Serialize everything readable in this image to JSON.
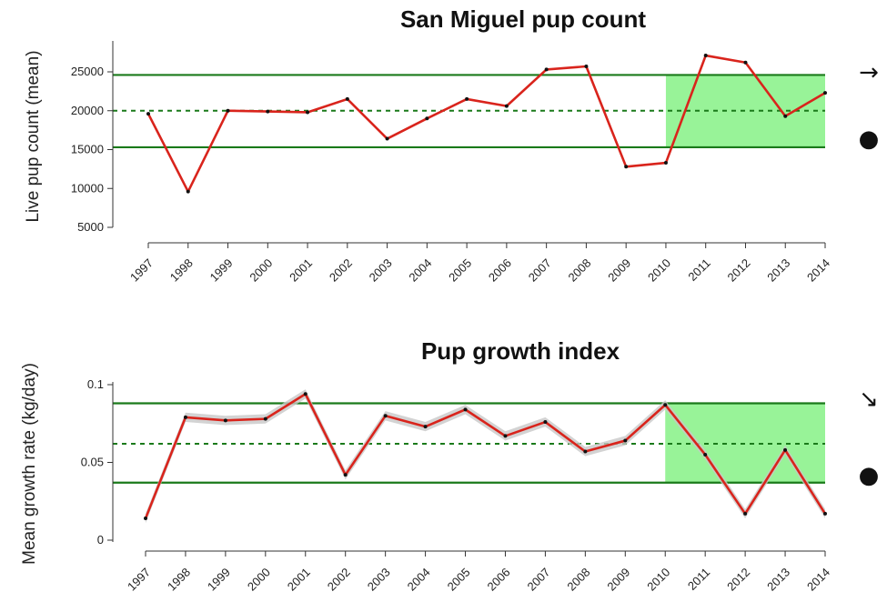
{
  "chart_data": [
    {
      "type": "line",
      "title": "San Miguel pup count",
      "xlabel": "",
      "ylabel": "Live pup count (mean)",
      "x": [
        "1997",
        "1998",
        "1999",
        "2000",
        "2001",
        "2002",
        "2003",
        "2004",
        "2005",
        "2006",
        "2007",
        "2008",
        "2009",
        "2010",
        "2011",
        "2012",
        "2013",
        "2014"
      ],
      "values": [
        19600,
        9600,
        20000,
        19900,
        19800,
        21500,
        16400,
        19000,
        21500,
        20600,
        25300,
        25700,
        12800,
        13300,
        27100,
        26200,
        19300,
        22300
      ],
      "yticks": [
        "5000",
        "10000",
        "15000",
        "20000",
        "25000"
      ],
      "ylim": [
        4000,
        28500
      ],
      "mean_line": 20000,
      "upper_line": 24600,
      "lower_line": 15300,
      "highlight_range": [
        "2010",
        "2014"
      ],
      "trend_symbol": "→",
      "status_symbol": "●",
      "colors": {
        "line": "#d9241c",
        "bands": "#1a7a1a",
        "highlight": "#98f398",
        "points": "#111111"
      }
    },
    {
      "type": "line",
      "title": "Pup growth index",
      "xlabel": "",
      "ylabel": "Mean growth rate (kg/day)",
      "x": [
        "1997",
        "1998",
        "1999",
        "2000",
        "2001",
        "2002",
        "2003",
        "2004",
        "2005",
        "2006",
        "2007",
        "2008",
        "2009",
        "2010",
        "2011",
        "2012",
        "2013",
        "2014"
      ],
      "values": [
        0.014,
        0.079,
        0.077,
        0.078,
        0.094,
        0.042,
        0.08,
        0.073,
        0.084,
        0.067,
        0.076,
        0.057,
        0.064,
        0.087,
        0.055,
        0.017,
        0.058,
        0.017
      ],
      "yticks": [
        "0",
        "0.05",
        "0.1"
      ],
      "ylim": [
        0,
        0.1
      ],
      "mean_line": 0.062,
      "upper_line": 0.088,
      "lower_line": 0.037,
      "highlight_range": [
        "2010",
        "2014"
      ],
      "trend_symbol": "↘",
      "status_symbol": "●",
      "colors": {
        "line": "#d9241c",
        "bands": "#1a7a1a",
        "highlight": "#98f398",
        "points": "#111111",
        "ci": "#c8c8c8"
      }
    }
  ]
}
